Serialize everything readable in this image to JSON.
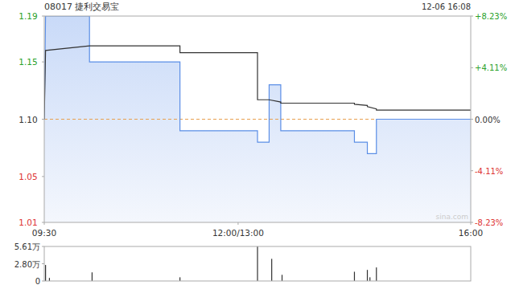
{
  "chart_data": [
    {
      "type": "line",
      "title": "08017 捷利交易宝",
      "subtitle": "12-06 16:08",
      "annotations": [
        "sina.com"
      ],
      "x": [
        0,
        1,
        35,
        35,
        105,
        105,
        165,
        165,
        174,
        174,
        183,
        183,
        240,
        240,
        250,
        250,
        257,
        257,
        330
      ],
      "series": [
        {
          "color": "#5b8ee6",
          "values": [
            1.1,
            1.19,
            1.19,
            1.15,
            1.15,
            1.09,
            1.09,
            1.08,
            1.08,
            1.13,
            1.13,
            1.09,
            1.09,
            1.08,
            1.08,
            1.07,
            1.07,
            1.1,
            1.1
          ]
        },
        {
          "color": "#333333",
          "values": [
            1.1,
            1.16,
            1.164,
            1.164,
            1.164,
            1.158,
            1.158,
            1.117,
            1.117,
            1.117,
            1.115,
            1.114,
            1.114,
            1.113,
            1.112,
            1.111,
            1.109,
            1.108,
            1.108
          ]
        }
      ],
      "prev_close": 1.1,
      "xlim": [
        0,
        330
      ],
      "xticks": [
        {
          "value": 0,
          "label": "09:30"
        },
        {
          "value": 150,
          "label": "12:00/13:00"
        },
        {
          "value": 330,
          "label": "16:00"
        }
      ],
      "ylim": [
        1.01,
        1.19
      ],
      "yticks": [
        1.19,
        1.15,
        {
          "value": 1.1,
          "label": "1.10"
        },
        1.05,
        1.01
      ],
      "y2lim": [
        -8.23,
        8.23
      ],
      "y2ticks": [
        {
          "value": 8.23,
          "label": "+8.23%"
        },
        {
          "value": 4.11,
          "label": "+4.11%"
        },
        {
          "value": 0,
          "label": "0.00%"
        },
        {
          "value": -4.11,
          "label": "-4.11%"
        },
        {
          "value": -8.23,
          "label": "-8.23%"
        }
      ],
      "grid": false
    },
    {
      "type": "bar",
      "color": "#333333",
      "x": [
        1,
        4,
        37,
        105,
        165,
        176,
        184,
        240,
        250,
        252,
        257
      ],
      "values": [
        2.6,
        0.5,
        1.4,
        0.6,
        5.61,
        3.6,
        1.0,
        1.5,
        1.8,
        0.6,
        2.2
      ],
      "xlim": [
        0,
        330
      ],
      "ylim": [
        0,
        5.61
      ],
      "yticks": [
        {
          "value": 5.61,
          "label": "5.61万"
        },
        {
          "value": 2.8,
          "label": "2.80万"
        },
        0
      ],
      "grid": false
    }
  ]
}
